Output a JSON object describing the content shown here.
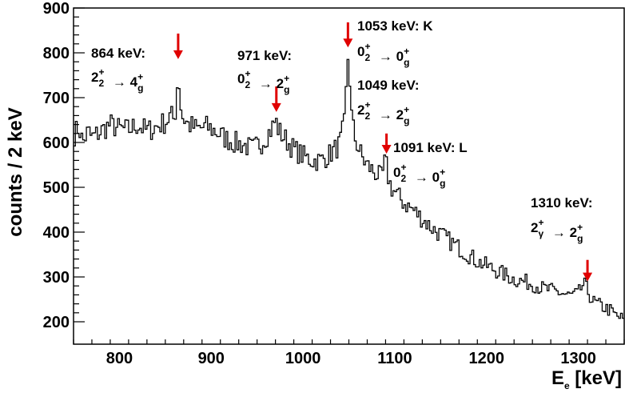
{
  "chart_data": {
    "type": "histogram",
    "title": "",
    "xlabel_main": "E",
    "xlabel_sub": "e",
    "xlabel_unit": " [keV]",
    "ylabel": "counts / 2 keV",
    "xlim": [
      750,
      1350
    ],
    "ylim": [
      150,
      900
    ],
    "bin_width": 2,
    "x_ticks": [
      800,
      900,
      1000,
      1100,
      1200,
      1300
    ],
    "y_ticks": [
      200,
      300,
      400,
      500,
      600,
      700,
      800,
      900
    ],
    "anchors": [
      [
        750,
        615
      ],
      [
        756,
        635
      ],
      [
        760,
        600
      ],
      [
        766,
        625
      ],
      [
        770,
        610
      ],
      [
        780,
        625
      ],
      [
        790,
        640
      ],
      [
        800,
        630
      ],
      [
        810,
        628
      ],
      [
        820,
        640
      ],
      [
        830,
        625
      ],
      [
        840,
        635
      ],
      [
        850,
        645
      ],
      [
        856,
        660
      ],
      [
        860,
        650
      ],
      [
        862,
        690
      ],
      [
        864,
        765
      ],
      [
        866,
        700
      ],
      [
        868,
        660
      ],
      [
        875,
        640
      ],
      [
        885,
        630
      ],
      [
        895,
        635
      ],
      [
        905,
        625
      ],
      [
        915,
        610
      ],
      [
        925,
        600
      ],
      [
        935,
        595
      ],
      [
        945,
        585
      ],
      [
        955,
        600
      ],
      [
        962,
        620
      ],
      [
        966,
        630
      ],
      [
        970,
        650
      ],
      [
        974,
        625
      ],
      [
        980,
        610
      ],
      [
        990,
        585
      ],
      [
        1000,
        570
      ],
      [
        1010,
        560
      ],
      [
        1020,
        560
      ],
      [
        1030,
        575
      ],
      [
        1040,
        595
      ],
      [
        1045,
        640
      ],
      [
        1047,
        710
      ],
      [
        1049,
        790
      ],
      [
        1051,
        740
      ],
      [
        1053,
        660
      ],
      [
        1056,
        615
      ],
      [
        1060,
        590
      ],
      [
        1066,
        560
      ],
      [
        1072,
        545
      ],
      [
        1080,
        530
      ],
      [
        1086,
        520
      ],
      [
        1090,
        565
      ],
      [
        1092,
        530
      ],
      [
        1096,
        500
      ],
      [
        1100,
        490
      ],
      [
        1110,
        465
      ],
      [
        1120,
        450
      ],
      [
        1130,
        430
      ],
      [
        1140,
        410
      ],
      [
        1150,
        395
      ],
      [
        1160,
        380
      ],
      [
        1170,
        365
      ],
      [
        1180,
        350
      ],
      [
        1190,
        335
      ],
      [
        1200,
        325
      ],
      [
        1210,
        315
      ],
      [
        1220,
        305
      ],
      [
        1230,
        295
      ],
      [
        1240,
        290
      ],
      [
        1250,
        285
      ],
      [
        1260,
        275
      ],
      [
        1270,
        270
      ],
      [
        1280,
        265
      ],
      [
        1290,
        258
      ],
      [
        1300,
        262
      ],
      [
        1306,
        285
      ],
      [
        1310,
        270
      ],
      [
        1316,
        245
      ],
      [
        1325,
        235
      ],
      [
        1335,
        225
      ],
      [
        1342,
        212
      ],
      [
        1350,
        205
      ]
    ],
    "arrows": [
      {
        "x": 864,
        "y_top": 843,
        "y_tip": 786
      },
      {
        "x": 971,
        "y_top": 725,
        "y_tip": 668
      },
      {
        "x": 1049,
        "y_top": 868,
        "y_tip": 812
      },
      {
        "x": 1091,
        "y_top": 620,
        "y_tip": 575
      },
      {
        "x": 1310,
        "y_top": 338,
        "y_tip": 290
      }
    ],
    "annotations": [
      {
        "energy": "864 keV:",
        "trans": [
          [
            "2",
            "2",
            "+"
          ],
          [
            "4",
            "g",
            "+"
          ]
        ]
      },
      {
        "energy": "971 keV:",
        "trans": [
          [
            "0",
            "2",
            "+"
          ],
          [
            "2",
            "g",
            "+"
          ]
        ]
      },
      {
        "energy": "1053 keV: K",
        "trans": [
          [
            "0",
            "2",
            "+"
          ],
          [
            "0",
            "g",
            "+"
          ]
        ]
      },
      {
        "energy": "1049 keV:",
        "trans": [
          [
            "2",
            "2",
            "+"
          ],
          [
            "2",
            "g",
            "+"
          ]
        ]
      },
      {
        "energy": "1091 keV: L",
        "trans": [
          [
            "0",
            "2",
            "+"
          ],
          [
            "0",
            "g",
            "+"
          ]
        ]
      },
      {
        "energy": "1310 keV:",
        "trans": [
          [
            "2",
            "γ",
            "+"
          ],
          [
            "2",
            "g",
            "+"
          ]
        ]
      }
    ],
    "arrow_symbol": "→",
    "colors": {
      "line": "#000000",
      "arrow": "#e00000",
      "frame": "#000000"
    }
  }
}
